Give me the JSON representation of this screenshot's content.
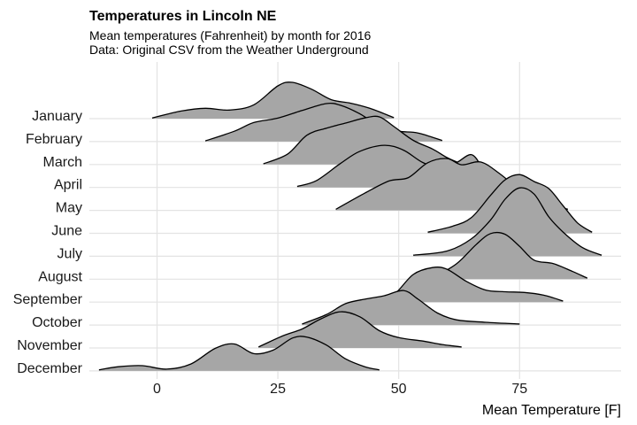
{
  "chart_data": {
    "type": "ridgeline",
    "title": "Temperatures in Lincoln NE",
    "subtitle": "Mean temperatures (Fahrenheit) by month for 2016",
    "caption": "Data: Original CSV from the Weather Underground",
    "xlabel": "Mean Temperature [F]",
    "ylabel": "",
    "xlim": [
      -14,
      96
    ],
    "x_ticks": [
      0,
      25,
      50,
      75
    ],
    "grid": true,
    "fill_color": "#a6a6a6",
    "line_color": "#000000",
    "grid_color": "#e3e3e3",
    "months": [
      {
        "label": "January",
        "range": [
          -1,
          49
        ],
        "profile": [
          [
            -1,
            0.02
          ],
          [
            5,
            0.22
          ],
          [
            10,
            0.3
          ],
          [
            15,
            0.25
          ],
          [
            20,
            0.4
          ],
          [
            25,
            0.95
          ],
          [
            28,
            1.05
          ],
          [
            32,
            0.85
          ],
          [
            36,
            0.55
          ],
          [
            40,
            0.45
          ],
          [
            44,
            0.3
          ],
          [
            49,
            0.03
          ]
        ]
      },
      {
        "label": "February",
        "range": [
          10,
          59
        ],
        "profile": [
          [
            10,
            0.02
          ],
          [
            16,
            0.3
          ],
          [
            20,
            0.55
          ],
          [
            25,
            0.68
          ],
          [
            30,
            0.9
          ],
          [
            35,
            1.1
          ],
          [
            38,
            1.05
          ],
          [
            42,
            0.8
          ],
          [
            46,
            0.45
          ],
          [
            50,
            0.3
          ],
          [
            54,
            0.25
          ],
          [
            59,
            0.03
          ]
        ]
      },
      {
        "label": "March",
        "range": [
          22,
          63
        ],
        "profile": [
          [
            22,
            0.02
          ],
          [
            27,
            0.3
          ],
          [
            31,
            0.85
          ],
          [
            35,
            1.05
          ],
          [
            39,
            1.2
          ],
          [
            43,
            1.35
          ],
          [
            46,
            1.38
          ],
          [
            49,
            1.1
          ],
          [
            53,
            0.7
          ],
          [
            57,
            0.45
          ],
          [
            60,
            0.2
          ],
          [
            63,
            0.02
          ]
        ]
      },
      {
        "label": "April",
        "range": [
          29,
          68
        ],
        "profile": [
          [
            29,
            0.03
          ],
          [
            33,
            0.2
          ],
          [
            38,
            0.7
          ],
          [
            42,
            1.05
          ],
          [
            47,
            1.22
          ],
          [
            51,
            1.08
          ],
          [
            55,
            0.72
          ],
          [
            59,
            0.55
          ],
          [
            62,
            0.72
          ],
          [
            65,
            0.95
          ],
          [
            67,
            0.6
          ],
          [
            68,
            0.03
          ]
        ]
      },
      {
        "label": "May",
        "range": [
          37,
          85
        ],
        "profile": [
          [
            37,
            0.03
          ],
          [
            43,
            0.5
          ],
          [
            48,
            0.85
          ],
          [
            52,
            0.95
          ],
          [
            56,
            1.38
          ],
          [
            60,
            1.5
          ],
          [
            63,
            1.32
          ],
          [
            67,
            1.4
          ],
          [
            71,
            1.05
          ],
          [
            75,
            0.6
          ],
          [
            79,
            0.3
          ],
          [
            85,
            0.03
          ]
        ]
      },
      {
        "label": "June",
        "range": [
          56,
          90
        ],
        "profile": [
          [
            56,
            0.03
          ],
          [
            61,
            0.2
          ],
          [
            65,
            0.45
          ],
          [
            69,
            1.1
          ],
          [
            72,
            1.55
          ],
          [
            75,
            1.7
          ],
          [
            78,
            1.5
          ],
          [
            81,
            1.3
          ],
          [
            84,
            0.8
          ],
          [
            87,
            0.3
          ],
          [
            90,
            0.03
          ]
        ]
      },
      {
        "label": "July",
        "range": [
          53,
          92
        ],
        "profile": [
          [
            53,
            0.03
          ],
          [
            60,
            0.15
          ],
          [
            65,
            0.5
          ],
          [
            69,
            1.05
          ],
          [
            72,
            1.65
          ],
          [
            75,
            1.98
          ],
          [
            78,
            1.8
          ],
          [
            81,
            1.15
          ],
          [
            84,
            0.7
          ],
          [
            88,
            0.25
          ],
          [
            92,
            0.03
          ]
        ]
      },
      {
        "label": "August",
        "range": [
          57,
          89
        ],
        "profile": [
          [
            57,
            0.03
          ],
          [
            62,
            0.45
          ],
          [
            66,
            1.0
          ],
          [
            69,
            1.32
          ],
          [
            72,
            1.3
          ],
          [
            75,
            0.95
          ],
          [
            78,
            0.55
          ],
          [
            82,
            0.45
          ],
          [
            86,
            0.22
          ],
          [
            89,
            0.03
          ]
        ]
      },
      {
        "label": "September",
        "range": [
          45,
          84
        ],
        "profile": [
          [
            45,
            0.03
          ],
          [
            49,
            0.22
          ],
          [
            53,
            0.8
          ],
          [
            57,
            1.0
          ],
          [
            60,
            0.95
          ],
          [
            64,
            0.6
          ],
          [
            68,
            0.35
          ],
          [
            72,
            0.3
          ],
          [
            76,
            0.28
          ],
          [
            80,
            0.2
          ],
          [
            84,
            0.03
          ]
        ]
      },
      {
        "label": "October",
        "range": [
          30,
          75
        ],
        "profile": [
          [
            30,
            0.03
          ],
          [
            35,
            0.3
          ],
          [
            39,
            0.62
          ],
          [
            43,
            0.75
          ],
          [
            47,
            0.85
          ],
          [
            51,
            1.0
          ],
          [
            54,
            0.75
          ],
          [
            58,
            0.35
          ],
          [
            62,
            0.15
          ],
          [
            68,
            0.08
          ],
          [
            75,
            0.03
          ]
        ]
      },
      {
        "label": "November",
        "range": [
          21,
          63
        ],
        "profile": [
          [
            21,
            0.03
          ],
          [
            26,
            0.35
          ],
          [
            30,
            0.55
          ],
          [
            34,
            0.85
          ],
          [
            38,
            1.05
          ],
          [
            42,
            0.9
          ],
          [
            46,
            0.5
          ],
          [
            50,
            0.3
          ],
          [
            55,
            0.2
          ],
          [
            59,
            0.1
          ],
          [
            63,
            0.03
          ]
        ]
      },
      {
        "label": "December",
        "range": [
          -12,
          46
        ],
        "profile": [
          [
            -12,
            0.03
          ],
          [
            -8,
            0.12
          ],
          [
            -3,
            0.15
          ],
          [
            2,
            0.05
          ],
          [
            7,
            0.2
          ],
          [
            12,
            0.65
          ],
          [
            16,
            0.78
          ],
          [
            20,
            0.5
          ],
          [
            24,
            0.6
          ],
          [
            28,
            0.95
          ],
          [
            31,
            0.98
          ],
          [
            35,
            0.75
          ],
          [
            39,
            0.35
          ],
          [
            43,
            0.12
          ],
          [
            46,
            0.03
          ]
        ]
      }
    ]
  }
}
